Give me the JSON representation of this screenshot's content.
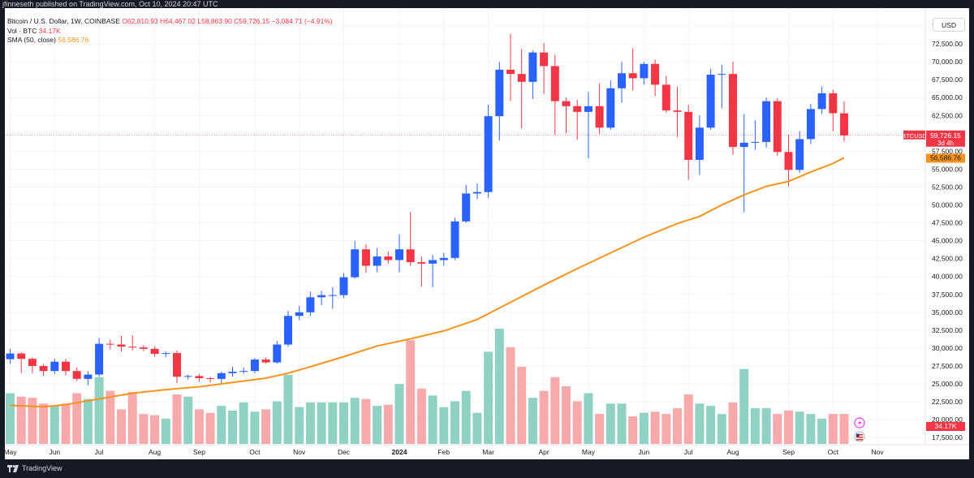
{
  "header": {
    "published": "jfinneseth published on TradingView.com, Oct 10, 2024 20:47 UTC"
  },
  "legend": {
    "symbol": "Bitcoin / U.S. Dollar, 1W, COINBASE",
    "ohlc": "O62,810.93 H64,467.02 L58,863.90 C59,726.15 −3,084.71 (−4.91%)",
    "vol_label": "Vol · BTC",
    "vol_value": "34.17K",
    "sma_label": "SMA (50, close)",
    "sma_value": "56,586.76"
  },
  "price_scale": {
    "currency": "USD"
  },
  "footer": {
    "brand": "TradingView"
  },
  "colors": {
    "up": "#2962ff",
    "down": "#f23645",
    "sma": "#f7931a",
    "vol_up": "#8fd2c4",
    "vol_down": "#f7a9ab"
  },
  "chart_data": {
    "type": "candlestick",
    "symbol": "BTCUSD",
    "interval": "1W",
    "y_ticks": [
      17500,
      20000,
      22500,
      25000,
      27500,
      30000,
      32500,
      35000,
      37500,
      40000,
      42500,
      45000,
      47500,
      50000,
      52500,
      55000,
      57500,
      60000,
      62500,
      65000,
      67500,
      70000,
      72500,
      75000
    ],
    "ylim": [
      16500,
      77500
    ],
    "x_labels": [
      {
        "label": "May",
        "week": 0
      },
      {
        "label": "Jun",
        "week": 4
      },
      {
        "label": "Jul",
        "week": 8
      },
      {
        "label": "Aug",
        "week": 13
      },
      {
        "label": "Sep",
        "week": 17
      },
      {
        "label": "Oct",
        "week": 22
      },
      {
        "label": "Nov",
        "week": 26
      },
      {
        "label": "Dec",
        "week": 30
      },
      {
        "label": "2024",
        "week": 35
      },
      {
        "label": "Feb",
        "week": 39
      },
      {
        "label": "Mar",
        "week": 43
      },
      {
        "label": "Apr",
        "week": 48
      },
      {
        "label": "May",
        "week": 52
      },
      {
        "label": "Jun",
        "week": 57
      },
      {
        "label": "Jul",
        "week": 61
      },
      {
        "label": "Aug",
        "week": 65
      },
      {
        "label": "Sep",
        "week": 70
      },
      {
        "label": "Oct",
        "week": 74
      },
      {
        "label": "Nov",
        "week": 78
      }
    ],
    "candles": [
      {
        "o": 28450,
        "h": 29900,
        "l": 27800,
        "c": 29250,
        "v": 4.4
      },
      {
        "o": 29250,
        "h": 29400,
        "l": 26500,
        "c": 28500,
        "v": 4.1
      },
      {
        "o": 28500,
        "h": 28700,
        "l": 26500,
        "c": 27500,
        "v": 4.0
      },
      {
        "o": 27500,
        "h": 27800,
        "l": 26100,
        "c": 26800,
        "v": 3.5
      },
      {
        "o": 26800,
        "h": 28500,
        "l": 26400,
        "c": 28100,
        "v": 3.3
      },
      {
        "o": 28100,
        "h": 28500,
        "l": 26200,
        "c": 26800,
        "v": 3.5
      },
      {
        "o": 26800,
        "h": 27300,
        "l": 25400,
        "c": 25700,
        "v": 4.4
      },
      {
        "o": 25700,
        "h": 26800,
        "l": 24800,
        "c": 26300,
        "v": 3.9
      },
      {
        "o": 26300,
        "h": 31400,
        "l": 26000,
        "c": 30600,
        "v": 5.8
      },
      {
        "o": 30600,
        "h": 31200,
        "l": 29800,
        "c": 30500,
        "v": 4.6
      },
      {
        "o": 30500,
        "h": 31700,
        "l": 29500,
        "c": 30200,
        "v": 3.0
      },
      {
        "o": 30200,
        "h": 31800,
        "l": 29700,
        "c": 30100,
        "v": 4.5
      },
      {
        "o": 30100,
        "h": 30400,
        "l": 29600,
        "c": 29900,
        "v": 2.6
      },
      {
        "o": 29900,
        "h": 30200,
        "l": 28800,
        "c": 29200,
        "v": 2.5
      },
      {
        "o": 29200,
        "h": 29500,
        "l": 28700,
        "c": 29300,
        "v": 2.2
      },
      {
        "o": 29300,
        "h": 29700,
        "l": 25100,
        "c": 26000,
        "v": 4.3
      },
      {
        "o": 26000,
        "h": 26300,
        "l": 25600,
        "c": 26100,
        "v": 4.1
      },
      {
        "o": 26100,
        "h": 26400,
        "l": 25300,
        "c": 25800,
        "v": 3.0
      },
      {
        "o": 25800,
        "h": 26000,
        "l": 25200,
        "c": 25700,
        "v": 2.7
      },
      {
        "o": 25700,
        "h": 26700,
        "l": 24900,
        "c": 26500,
        "v": 3.3
      },
      {
        "o": 26500,
        "h": 27400,
        "l": 26000,
        "c": 26700,
        "v": 2.9
      },
      {
        "o": 26700,
        "h": 27300,
        "l": 26400,
        "c": 26800,
        "v": 3.6
      },
      {
        "o": 26800,
        "h": 28600,
        "l": 26500,
        "c": 28400,
        "v": 2.8
      },
      {
        "o": 28400,
        "h": 28700,
        "l": 27800,
        "c": 28000,
        "v": 3.0
      },
      {
        "o": 28000,
        "h": 31000,
        "l": 27800,
        "c": 30500,
        "v": 3.7
      },
      {
        "o": 30500,
        "h": 35200,
        "l": 30200,
        "c": 34500,
        "v": 6.0
      },
      {
        "o": 34500,
        "h": 35900,
        "l": 33900,
        "c": 35000,
        "v": 3.2
      },
      {
        "o": 35000,
        "h": 37900,
        "l": 34500,
        "c": 37100,
        "v": 3.6
      },
      {
        "o": 37100,
        "h": 38000,
        "l": 36000,
        "c": 37400,
        "v": 3.6
      },
      {
        "o": 37400,
        "h": 38500,
        "l": 35500,
        "c": 37400,
        "v": 3.6
      },
      {
        "o": 37400,
        "h": 40500,
        "l": 37000,
        "c": 39900,
        "v": 3.6
      },
      {
        "o": 39900,
        "h": 45000,
        "l": 39700,
        "c": 43800,
        "v": 4.0
      },
      {
        "o": 43800,
        "h": 44500,
        "l": 40500,
        "c": 41500,
        "v": 3.9
      },
      {
        "o": 41500,
        "h": 44000,
        "l": 40600,
        "c": 42800,
        "v": 3.3
      },
      {
        "o": 42800,
        "h": 43500,
        "l": 41800,
        "c": 42300,
        "v": 3.4
      },
      {
        "o": 42300,
        "h": 45900,
        "l": 40600,
        "c": 43800,
        "v": 5.2
      },
      {
        "o": 43800,
        "h": 49000,
        "l": 41500,
        "c": 42000,
        "v": 9.0
      },
      {
        "o": 42000,
        "h": 42800,
        "l": 38600,
        "c": 41800,
        "v": 4.8
      },
      {
        "o": 41800,
        "h": 43000,
        "l": 38500,
        "c": 42300,
        "v": 4.2
      },
      {
        "o": 42300,
        "h": 43300,
        "l": 41500,
        "c": 42600,
        "v": 3.2
      },
      {
        "o": 42600,
        "h": 48200,
        "l": 42300,
        "c": 47700,
        "v": 3.7
      },
      {
        "o": 47700,
        "h": 52800,
        "l": 47500,
        "c": 51600,
        "v": 4.6
      },
      {
        "o": 51600,
        "h": 53000,
        "l": 50800,
        "c": 51800,
        "v": 2.7
      },
      {
        "o": 51800,
        "h": 64000,
        "l": 51000,
        "c": 62400,
        "v": 8.0
      },
      {
        "o": 62400,
        "h": 70000,
        "l": 59000,
        "c": 68900,
        "v": 10.0
      },
      {
        "o": 68900,
        "h": 73900,
        "l": 64500,
        "c": 68300,
        "v": 8.4
      },
      {
        "o": 68300,
        "h": 71800,
        "l": 60700,
        "c": 67200,
        "v": 6.7
      },
      {
        "o": 67200,
        "h": 71600,
        "l": 64800,
        "c": 71300,
        "v": 4.0
      },
      {
        "o": 71300,
        "h": 72600,
        "l": 65500,
        "c": 69400,
        "v": 4.6
      },
      {
        "o": 69400,
        "h": 71000,
        "l": 59800,
        "c": 64500,
        "v": 5.8
      },
      {
        "o": 64500,
        "h": 65000,
        "l": 60000,
        "c": 63800,
        "v": 5.0
      },
      {
        "o": 63800,
        "h": 64700,
        "l": 59100,
        "c": 63000,
        "v": 3.7
      },
      {
        "o": 63000,
        "h": 65800,
        "l": 56500,
        "c": 63800,
        "v": 4.4
      },
      {
        "o": 63800,
        "h": 67000,
        "l": 59900,
        "c": 60800,
        "v": 2.6
      },
      {
        "o": 60800,
        "h": 67400,
        "l": 60500,
        "c": 66300,
        "v": 3.5
      },
      {
        "o": 66300,
        "h": 70000,
        "l": 64300,
        "c": 68400,
        "v": 3.5
      },
      {
        "o": 68400,
        "h": 71900,
        "l": 66000,
        "c": 67700,
        "v": 2.4
      },
      {
        "o": 67700,
        "h": 70000,
        "l": 66800,
        "c": 69700,
        "v": 2.7
      },
      {
        "o": 69700,
        "h": 70300,
        "l": 65200,
        "c": 66800,
        "v": 2.8
      },
      {
        "o": 66800,
        "h": 68000,
        "l": 62900,
        "c": 63200,
        "v": 2.6
      },
      {
        "o": 63200,
        "h": 66500,
        "l": 59500,
        "c": 63000,
        "v": 3.1
      },
      {
        "o": 63000,
        "h": 64000,
        "l": 53500,
        "c": 56300,
        "v": 4.3
      },
      {
        "o": 56300,
        "h": 62500,
        "l": 54200,
        "c": 60800,
        "v": 3.5
      },
      {
        "o": 60800,
        "h": 69000,
        "l": 60500,
        "c": 68200,
        "v": 3.3
      },
      {
        "o": 68200,
        "h": 69600,
        "l": 63500,
        "c": 68300,
        "v": 2.6
      },
      {
        "o": 68300,
        "h": 70000,
        "l": 57000,
        "c": 58100,
        "v": 3.6
      },
      {
        "o": 58100,
        "h": 62700,
        "l": 49000,
        "c": 58700,
        "v": 6.5
      },
      {
        "o": 58700,
        "h": 61800,
        "l": 57700,
        "c": 58800,
        "v": 3.1
      },
      {
        "o": 58800,
        "h": 65000,
        "l": 58000,
        "c": 64500,
        "v": 3.1
      },
      {
        "o": 64500,
        "h": 64900,
        "l": 56900,
        "c": 57400,
        "v": 2.6
      },
      {
        "o": 57400,
        "h": 59800,
        "l": 52600,
        "c": 54900,
        "v": 2.9
      },
      {
        "o": 54900,
        "h": 60300,
        "l": 54500,
        "c": 59200,
        "v": 2.8
      },
      {
        "o": 59200,
        "h": 64100,
        "l": 58500,
        "c": 63400,
        "v": 2.6
      },
      {
        "o": 63400,
        "h": 66500,
        "l": 62700,
        "c": 65600,
        "v": 2.2
      },
      {
        "o": 65600,
        "h": 66100,
        "l": 60300,
        "c": 62810,
        "v": 2.6
      },
      {
        "o": 62810,
        "h": 64467,
        "l": 58864,
        "c": 59726,
        "v": 2.6
      }
    ],
    "sma50": [
      {
        "w": 0,
        "v": 22000
      },
      {
        "w": 3,
        "v": 21800
      },
      {
        "w": 5,
        "v": 22100
      },
      {
        "w": 8,
        "v": 22900
      },
      {
        "w": 11,
        "v": 23700
      },
      {
        "w": 14,
        "v": 24200
      },
      {
        "w": 17,
        "v": 24600
      },
      {
        "w": 20,
        "v": 25200
      },
      {
        "w": 23,
        "v": 25800
      },
      {
        "w": 25,
        "v": 26500
      },
      {
        "w": 27,
        "v": 27400
      },
      {
        "w": 30,
        "v": 28800
      },
      {
        "w": 33,
        "v": 30300
      },
      {
        "w": 36,
        "v": 31300
      },
      {
        "w": 39,
        "v": 32400
      },
      {
        "w": 42,
        "v": 34000
      },
      {
        "w": 45,
        "v": 36400
      },
      {
        "w": 48,
        "v": 38800
      },
      {
        "w": 51,
        "v": 41100
      },
      {
        "w": 54,
        "v": 43300
      },
      {
        "w": 57,
        "v": 45500
      },
      {
        "w": 60,
        "v": 47400
      },
      {
        "w": 62,
        "v": 48400
      },
      {
        "w": 64,
        "v": 50000
      },
      {
        "w": 66,
        "v": 51400
      },
      {
        "w": 68,
        "v": 52600
      },
      {
        "w": 70,
        "v": 53300
      },
      {
        "w": 72,
        "v": 54600
      },
      {
        "w": 74,
        "v": 55800
      },
      {
        "w": 75,
        "v": 56587
      }
    ],
    "last_price": {
      "label": "BTCUSD",
      "value": "59,726.15",
      "countdown": "3d 4h",
      "price_num": 59726.15
    },
    "sma_tag": {
      "value": "56,586.76",
      "price_num": 56586.76
    },
    "vol_tag": {
      "value": "34.17K"
    }
  }
}
